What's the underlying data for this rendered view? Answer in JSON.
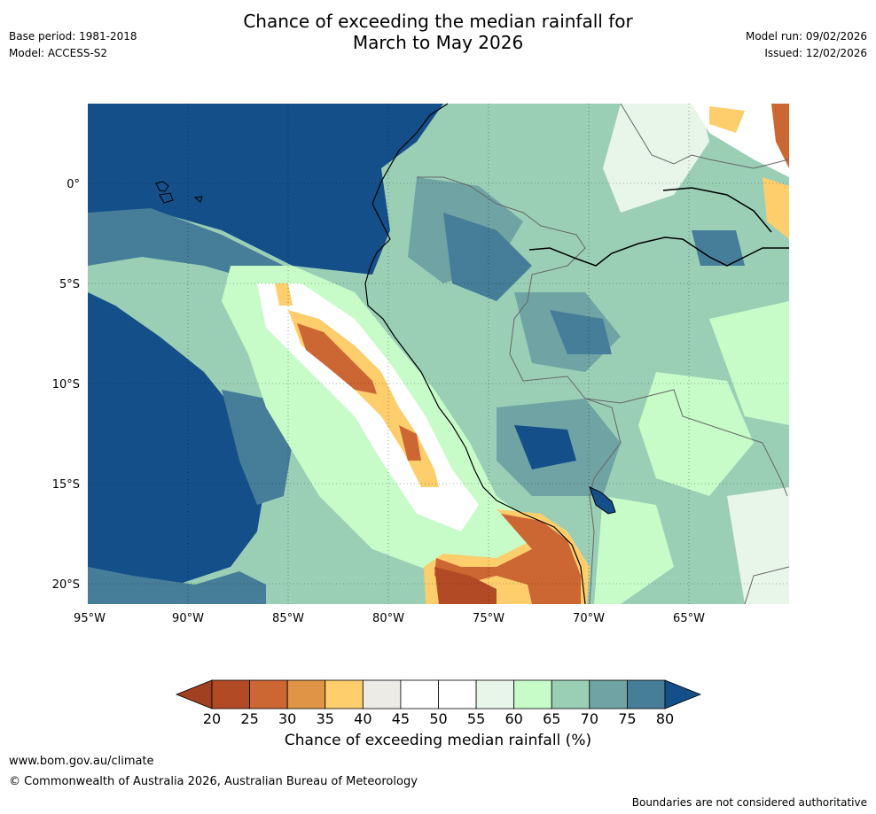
{
  "header": {
    "title_line1": "Chance of exceeding the median rainfall for",
    "title_line2": "March to May 2026",
    "base_period": "Base period: 1981-2018",
    "model": "Model: ACCESS-S2",
    "model_run": "Model run: 09/02/2026",
    "issued": "Issued: 12/02/2026"
  },
  "map": {
    "lat_labels": [
      "0°",
      "5°S",
      "10°S",
      "15°S",
      "20°S"
    ],
    "lon_labels": [
      "95°W",
      "90°W",
      "85°W",
      "80°W",
      "75°W",
      "70°W",
      "65°W"
    ]
  },
  "colorbar": {
    "ticks": [
      "20",
      "25",
      "30",
      "35",
      "40",
      "45",
      "50",
      "55",
      "60",
      "65",
      "70",
      "75",
      "80"
    ],
    "colors": [
      "#a0401f",
      "#b34a26",
      "#cc6633",
      "#e09445",
      "#fecd6c",
      "#ecebe6",
      "#ffffff",
      "#ffffff",
      "#e8f5e9",
      "#c7fcc9",
      "#9acfb6",
      "#6fa3a4",
      "#467d98",
      "#144f8a"
    ],
    "title": "Chance of exceeding median rainfall (%)"
  },
  "footer": {
    "url": "www.bom.gov.au/climate",
    "copyright": "© Commonwealth of Australia 2026, Australian Bureau of Meteorology",
    "note": "Boundaries are not considered authoritative"
  }
}
